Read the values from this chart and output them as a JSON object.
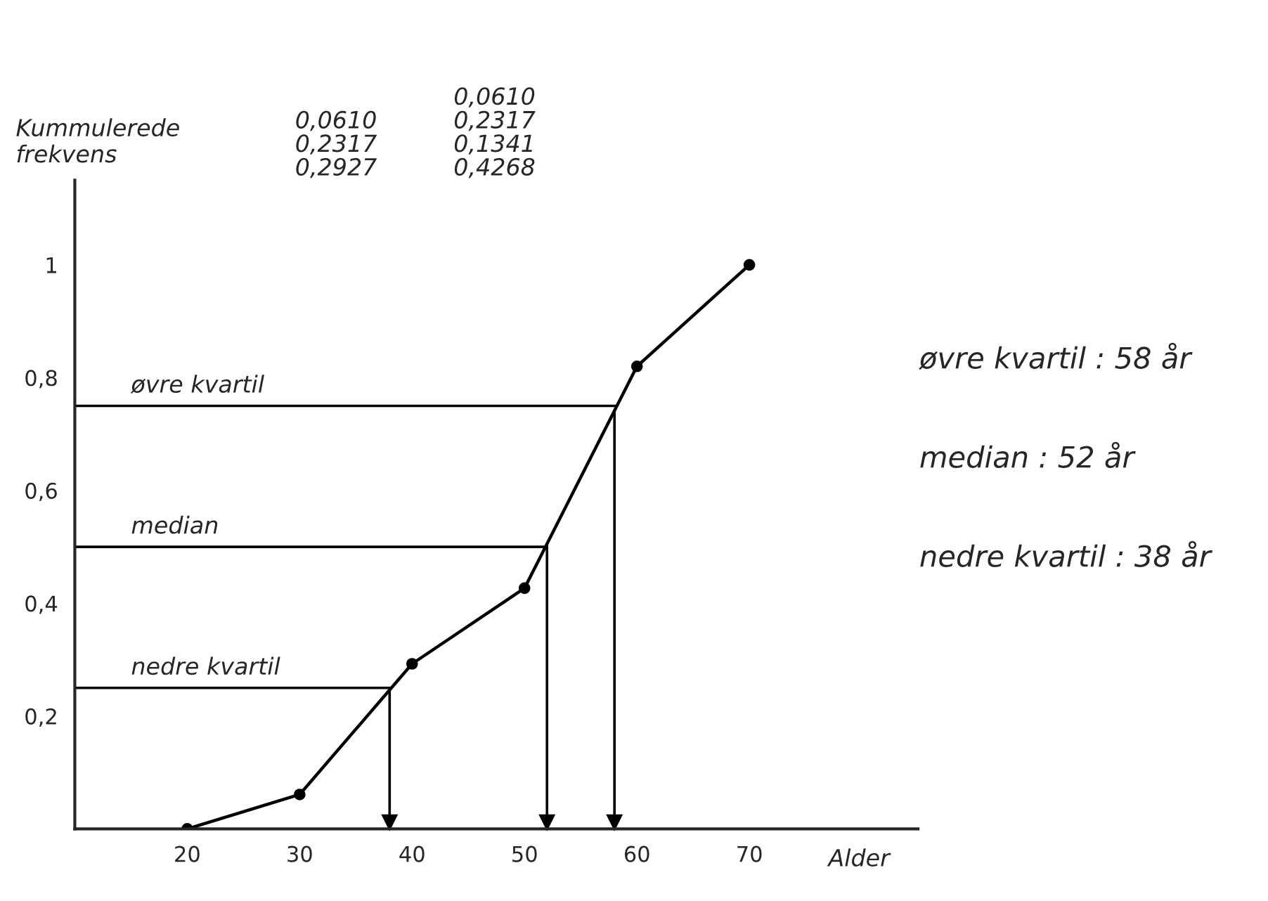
{
  "chart_data": {
    "type": "line",
    "xlabel": "Alder",
    "ylabel": "Kummulerede frekvens",
    "x": [
      20,
      30,
      40,
      50,
      60,
      70
    ],
    "series": [
      {
        "color": "#000000",
        "values": [
          0,
          0.061,
          0.2927,
          0.4268,
          0.82,
          1
        ]
      }
    ],
    "xlim": [
      10,
      85
    ],
    "ylim": [
      0,
      1.15
    ],
    "xticks": [
      20,
      30,
      40,
      50,
      60,
      70
    ],
    "yticks": [
      {
        "value": 0.2,
        "label": "0,2"
      },
      {
        "value": 0.4,
        "label": "0,4"
      },
      {
        "value": 0.6,
        "label": "0,6"
      },
      {
        "value": 0.8,
        "label": "0,8"
      },
      1
    ],
    "ref_lines": [
      {
        "axis": "y",
        "value": 0.75,
        "label": "øvre kvartil"
      },
      {
        "axis": "y",
        "value": 0.5,
        "label": "median"
      },
      {
        "axis": "y",
        "value": 0.25,
        "label": "nedre kvartil"
      },
      {
        "axis": "x",
        "value": 58
      },
      {
        "axis": "x",
        "value": 52
      },
      {
        "axis": "x",
        "value": 38
      }
    ],
    "annotations": [
      "0,0610\n0,2317\n0,2927",
      "0,0610\n0,2317\n0,1341\n0,4268",
      "øvre kvartil : 58 år",
      "median : 52 år",
      "nedre kvartil : 38 år"
    ],
    "grid": false,
    "legend": false,
    "marker": "circle",
    "line_style": "solid"
  }
}
